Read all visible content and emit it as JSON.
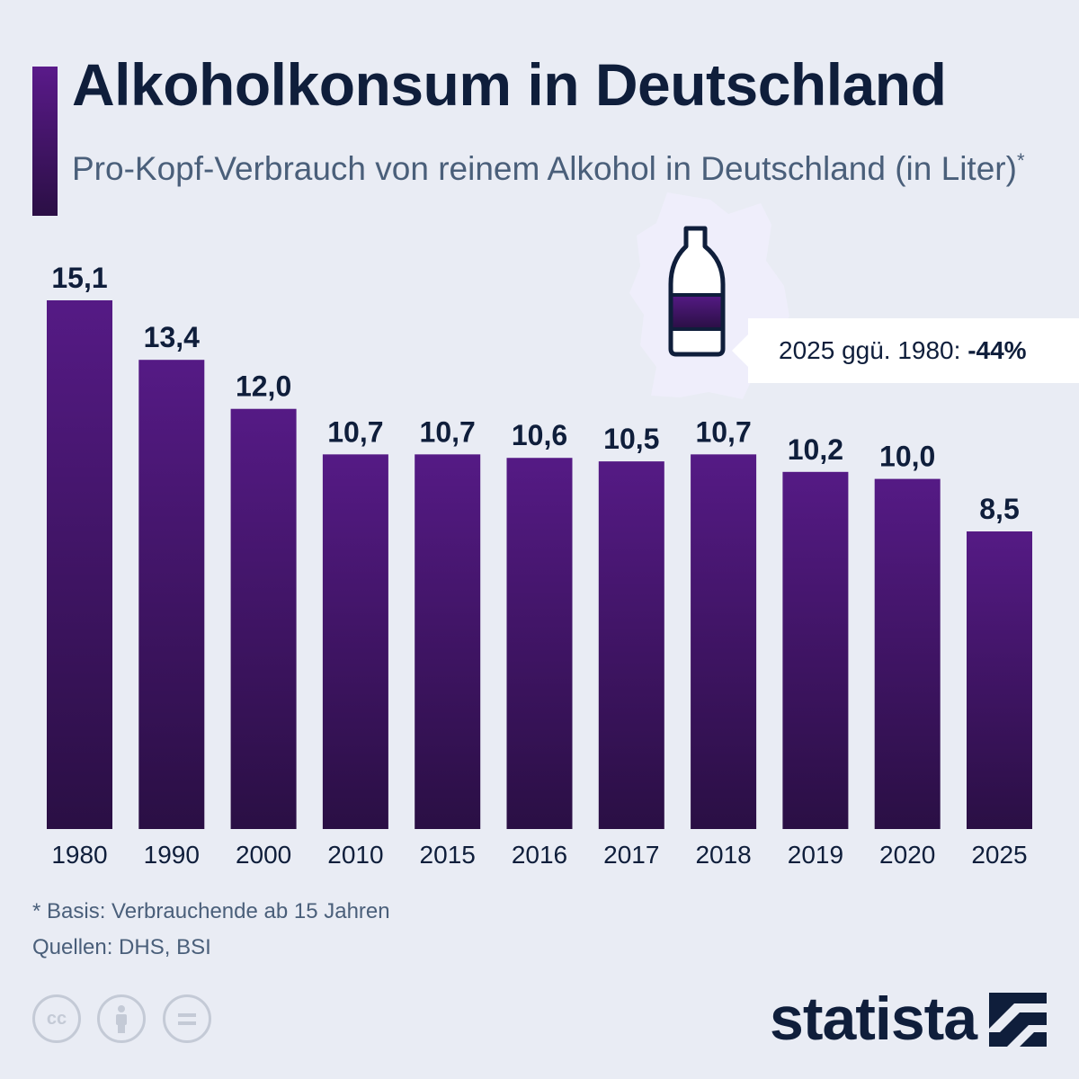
{
  "title": "Alkoholkonsum in Deutschland",
  "subtitle": "Pro-Kopf-Verbrauch von reinem Alkohol in Deutschland (in Liter)",
  "subtitle_mark": "*",
  "colors": {
    "bar_top": "#551a85",
    "bar_bottom": "#2a0f44",
    "text": "#0f1e3b",
    "background": "#e9ecf4"
  },
  "chart_data": {
    "type": "bar",
    "categories": [
      "1980",
      "1990",
      "2000",
      "2010",
      "2015",
      "2016",
      "2017",
      "2018",
      "2019",
      "2020",
      "2025"
    ],
    "values": [
      15.1,
      13.4,
      12.0,
      10.7,
      10.7,
      10.6,
      10.5,
      10.7,
      10.2,
      10.0,
      8.5
    ],
    "value_labels": [
      "15,1",
      "13,4",
      "12,0",
      "10,7",
      "10,7",
      "10,6",
      "10,5",
      "10,7",
      "10,2",
      "10,0",
      "8,5"
    ],
    "ylim": [
      0,
      15.1
    ],
    "grid": false,
    "legend": "none"
  },
  "callout": {
    "text": "2025 ggü. 1980: ",
    "value": "-44%",
    "icon": "bottle-icon"
  },
  "footnote": "* Basis: Verbrauchende ab 15 Jahren",
  "sources": "Quellen: DHS, BSI",
  "license_icons": [
    "cc-icon",
    "attribution-icon",
    "no-derivatives-icon"
  ],
  "brand": "statista"
}
